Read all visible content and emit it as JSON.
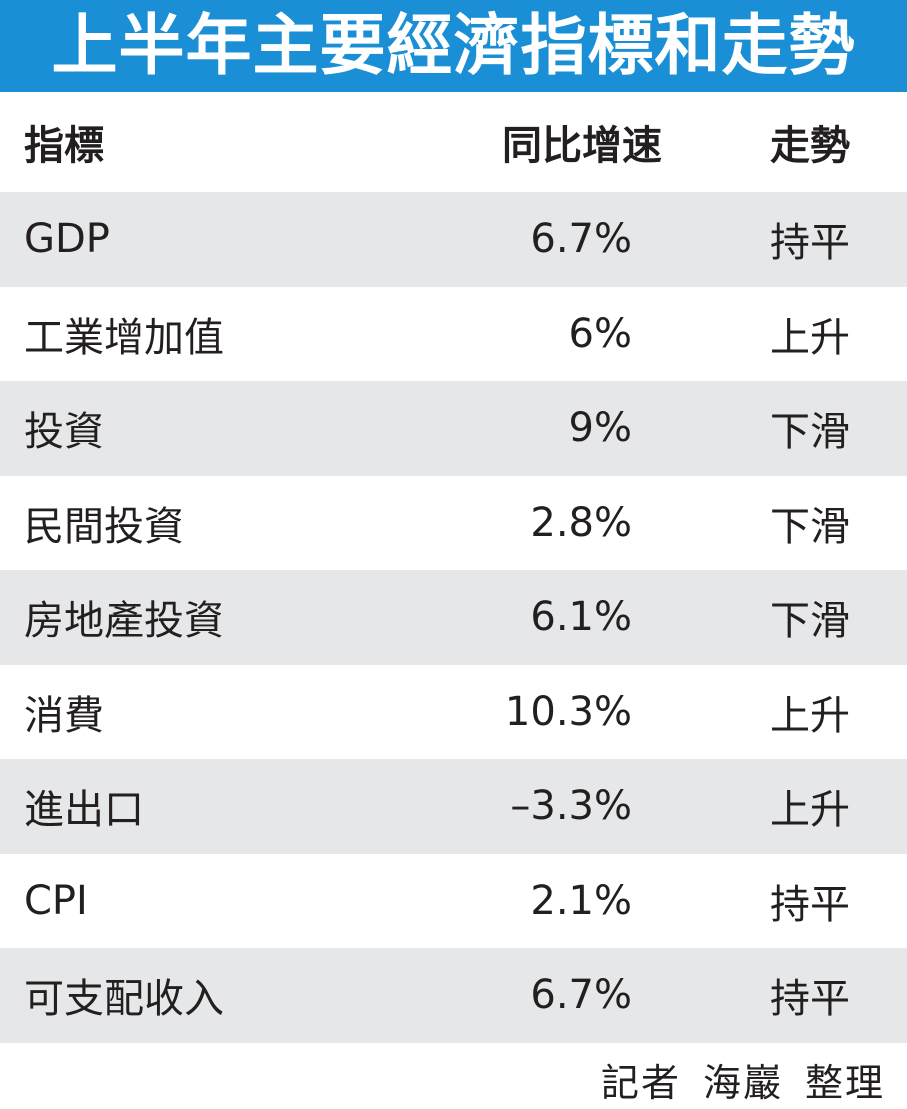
{
  "title": "上半年主要經濟指標和走勢",
  "table": {
    "headers": {
      "indicator": "指標",
      "growth": "同比增速",
      "trend": "走勢"
    },
    "rows": [
      {
        "indicator": "GDP",
        "growth": "6.7%",
        "trend": "持平"
      },
      {
        "indicator": "工業增加值",
        "growth": "6%",
        "trend": "上升"
      },
      {
        "indicator": "投資",
        "growth": "9%",
        "trend": "下滑"
      },
      {
        "indicator": "民間投資",
        "growth": "2.8%",
        "trend": "下滑"
      },
      {
        "indicator": "房地產投資",
        "growth": "6.1%",
        "trend": "下滑"
      },
      {
        "indicator": "消費",
        "growth": "10.3%",
        "trend": "上升"
      },
      {
        "indicator": "進出口",
        "growth": "–3.3%",
        "trend": "上升"
      },
      {
        "indicator": "CPI",
        "growth": "2.1%",
        "trend": "持平"
      },
      {
        "indicator": "可支配收入",
        "growth": "6.7%",
        "trend": "持平"
      }
    ]
  },
  "credit": {
    "role": "記者",
    "name": "海巖",
    "action": "整理"
  },
  "colors": {
    "title_background": "#1b8fd6",
    "title_text": "#ffffff",
    "row_shade": "#e6e7e8",
    "text": "#231f20"
  }
}
